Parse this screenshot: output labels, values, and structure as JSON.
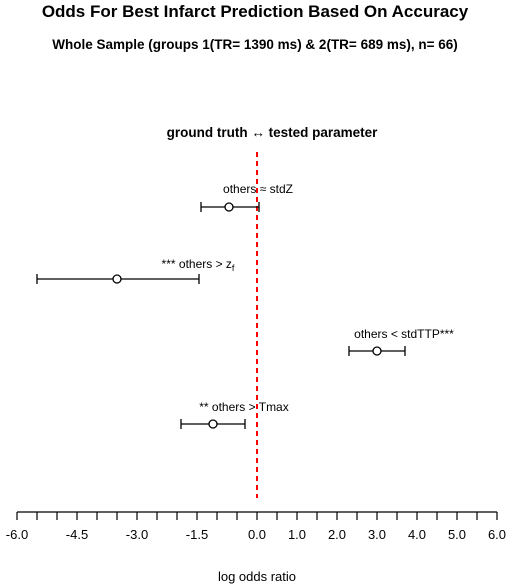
{
  "chart_data": {
    "type": "forest",
    "title": "Odds For Best Infarct Prediction Based On Accuracy",
    "subtitle": "Whole Sample (groups 1(TR= 1390 ms) & 2(TR= 689 ms), n= 66)",
    "header": "ground truth ↔ tested parameter",
    "xlabel": "log odds ratio",
    "xlim": [
      -6.0,
      6.0
    ],
    "xticks": [
      -6.0,
      -5.5,
      -5.0,
      -4.5,
      -4.0,
      -3.5,
      -3.0,
      -2.5,
      -2.0,
      -1.5,
      -1.0,
      -0.5,
      0.0,
      0.5,
      1.0,
      1.5,
      2.0,
      2.5,
      3.0,
      3.5,
      4.0,
      4.5,
      5.0,
      5.5,
      6.0
    ],
    "xtick_labels": [
      "-6.0",
      "",
      "",
      "-4.5",
      "",
      "",
      "-3.0",
      "",
      "",
      "-1.5",
      "",
      "",
      "0.0",
      "",
      "1.0",
      "",
      "2.0",
      "",
      "3.0",
      "",
      "4.0",
      "",
      "5.0",
      "",
      "6.0"
    ],
    "reference_line": {
      "x": 0,
      "color": "#ff0000",
      "style": "dashed"
    },
    "estimates": [
      {
        "label": "others ≈ stdZ",
        "estimate": -0.7,
        "lower": -1.4,
        "upper": 0.05
      },
      {
        "label": "*** others > z",
        "label_sub": "f",
        "estimate": -3.5,
        "lower": -5.5,
        "upper": -1.45
      },
      {
        "label": "others < stdTTP***",
        "estimate": 3.0,
        "lower": 2.3,
        "upper": 3.7
      },
      {
        "label": "** others > Tmax",
        "estimate": -1.1,
        "lower": -1.9,
        "upper": -0.3
      }
    ]
  }
}
